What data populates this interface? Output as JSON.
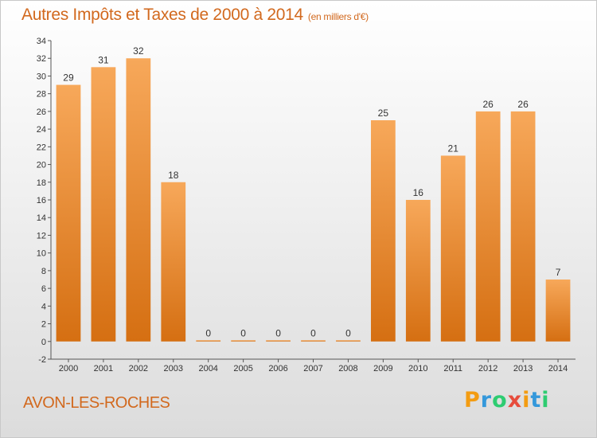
{
  "header": {
    "title": "Autres Impôts et Taxes de 2000 à 2014",
    "unit": "(en milliers d'€)"
  },
  "location": "AVON-LES-ROCHES",
  "logo": {
    "text": "Proxiti",
    "letters": [
      {
        "ch": "P",
        "color": "#f39c12"
      },
      {
        "ch": "r",
        "color": "#3498db"
      },
      {
        "ch": "o",
        "color": "#2ecc71"
      },
      {
        "ch": "x",
        "color": "#e74c3c"
      },
      {
        "ch": "i",
        "color": "#f39c12"
      },
      {
        "ch": "t",
        "color": "#3498db"
      },
      {
        "ch": "i",
        "color": "#2ecc71"
      }
    ]
  },
  "colors": {
    "bar_top": "#f7a85a",
    "bar_bottom": "#d56f12",
    "title": "#d2691e"
  },
  "chart_data": {
    "type": "bar",
    "categories": [
      "2000",
      "2001",
      "2002",
      "2003",
      "2004",
      "2005",
      "2006",
      "2007",
      "2008",
      "2009",
      "2010",
      "2011",
      "2012",
      "2013",
      "2014"
    ],
    "values": [
      29,
      31,
      32,
      18,
      0,
      0,
      0,
      0,
      0,
      25,
      16,
      21,
      26,
      26,
      7
    ],
    "ylim": [
      -2,
      34
    ],
    "yticks": [
      -2,
      0,
      2,
      4,
      6,
      8,
      10,
      12,
      14,
      16,
      18,
      20,
      22,
      24,
      26,
      28,
      30,
      32,
      34
    ],
    "grid": false,
    "legend": "none"
  }
}
